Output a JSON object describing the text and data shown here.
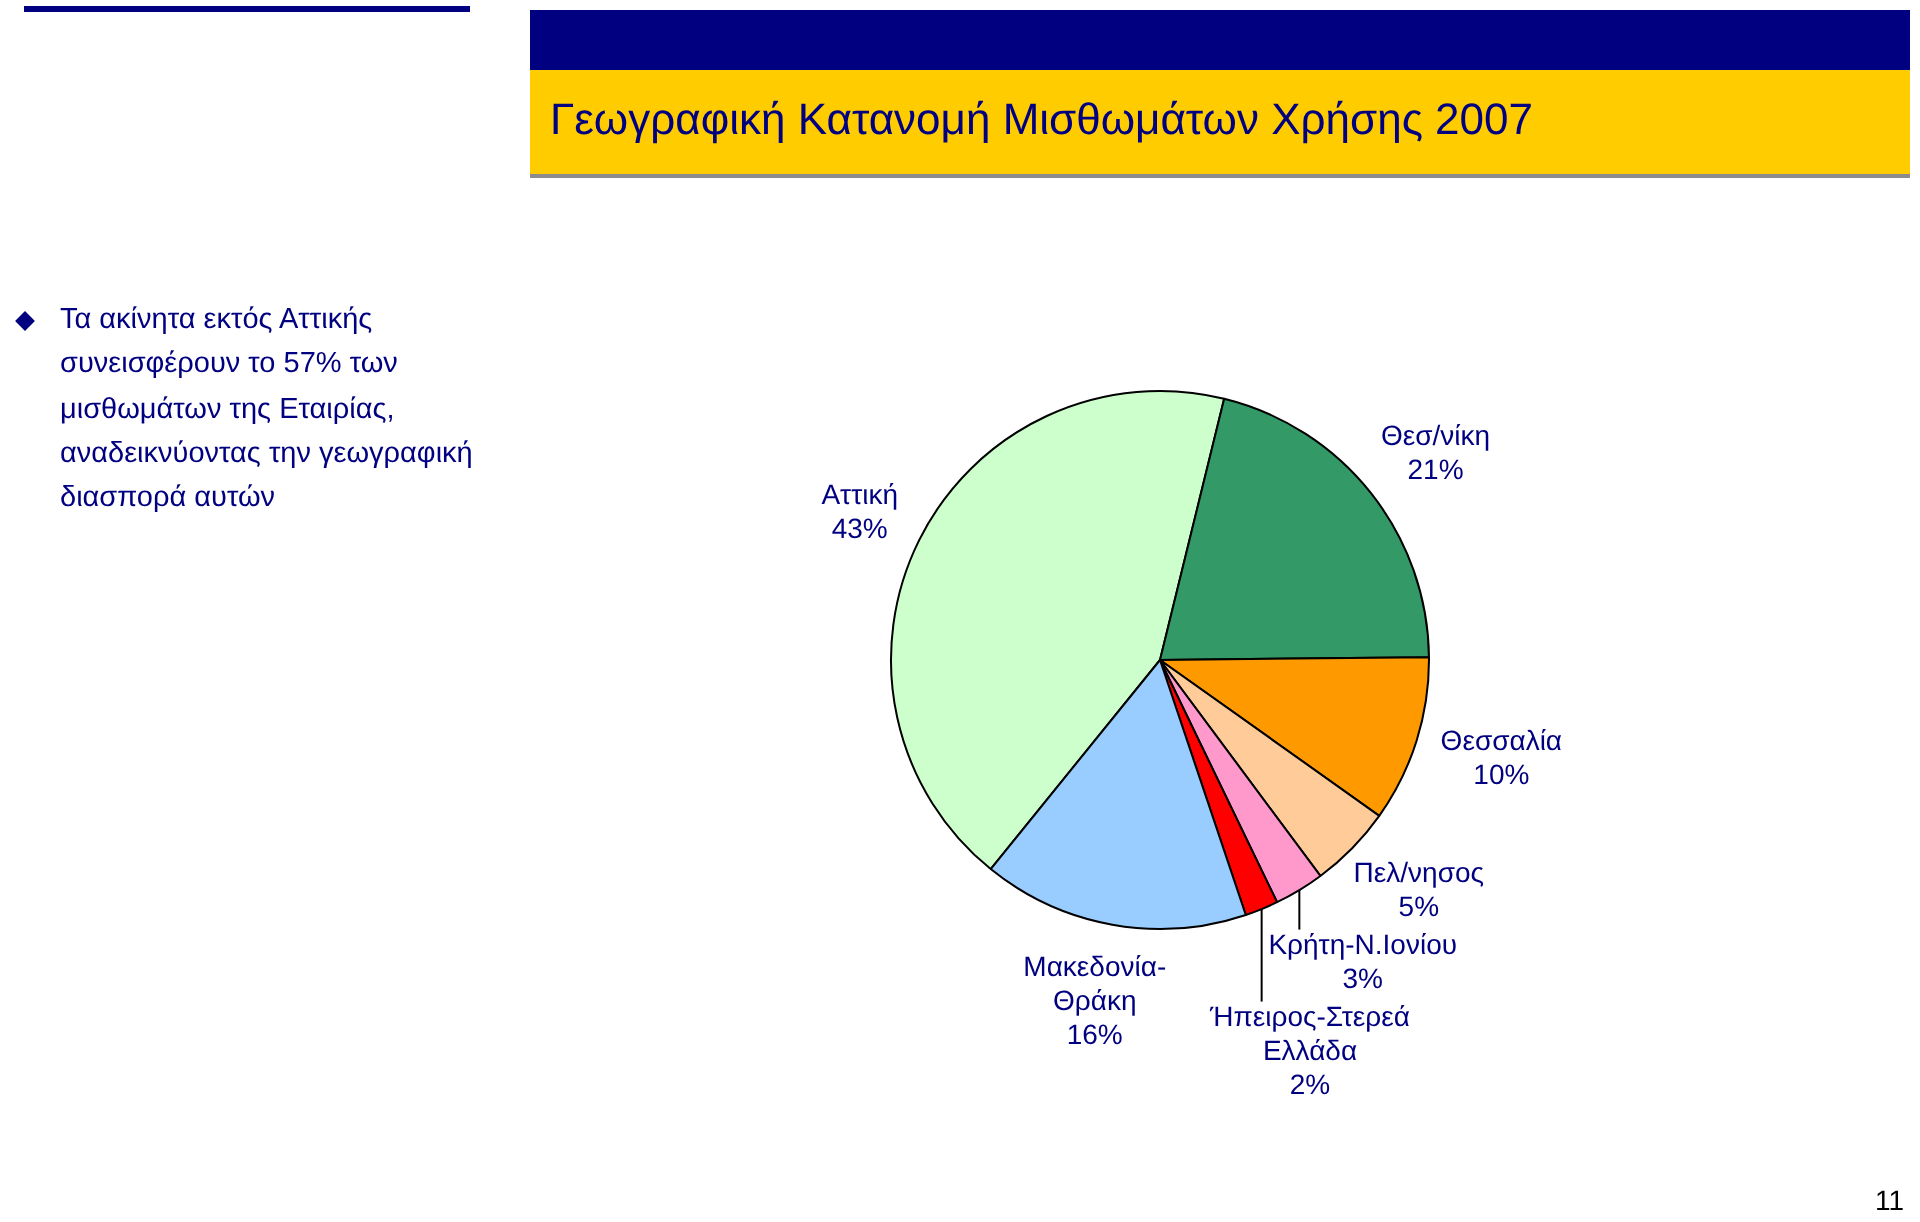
{
  "chart_data": {
    "type": "pie",
    "title": "Γεωγραφική Κατανομή Μισθωμάτων Χρήσης 2007",
    "categories": [
      "Αττική",
      "Θεσ/νίκη",
      "Θεσσαλία",
      "Πελ/νησος",
      "Κρήτη-Ν.Ιονίου",
      "Ήπειρος-Στερεά Ελλάδα",
      "Μακεδονία-Θράκη"
    ],
    "values": [
      43,
      21,
      10,
      5,
      3,
      2,
      16
    ],
    "colors": [
      "#ccffcc",
      "#339966",
      "#ff9900",
      "#ffcc99",
      "#ff99cc",
      "#ff0000",
      "#99ccff"
    ],
    "value_labels": [
      "43%",
      "21%",
      "10%",
      "5%",
      "3%",
      "2%",
      "16%"
    ],
    "annotations": [
      "Τα ακίνητα εκτός Αττικής συνεισφέρουν το 57% των μισθωμάτων της Εταιρίας, αναδεικνύοντας την γεωγραφική διασπορά αυτών",
      "11"
    ]
  }
}
